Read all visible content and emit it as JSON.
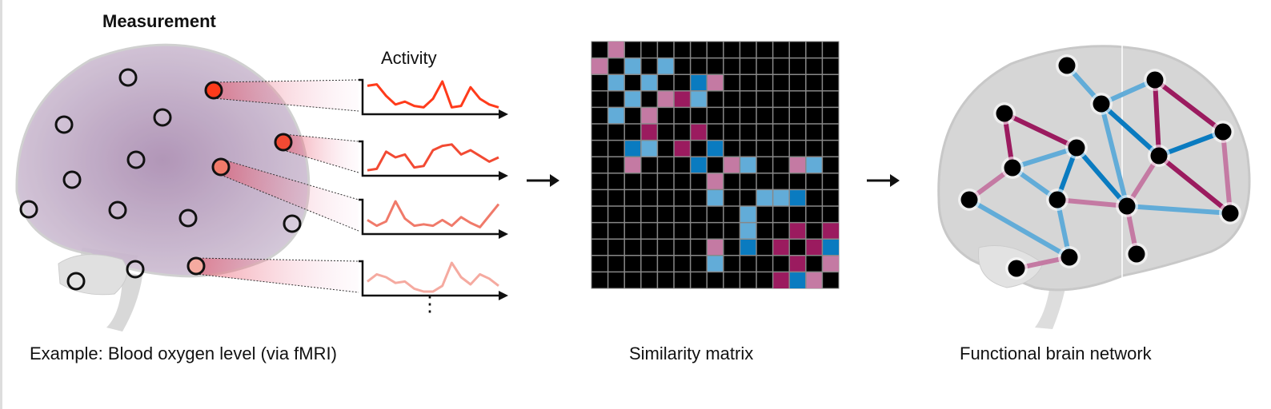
{
  "measurement": {
    "title": "Measurement",
    "activity_label": "Activity",
    "caption": "Example: Blood oxygen level (via fMRI)",
    "ellipsis": "⋮",
    "trace_colors": [
      "#ff3b1b",
      "#f24a33",
      "#f07a6a",
      "#f5aaa0"
    ],
    "traces": [
      [
        0.85,
        0.9,
        0.5,
        0.2,
        0.3,
        0.15,
        0.1,
        0.4,
        1.0,
        0.1,
        0.15,
        0.8,
        0.4,
        0.2,
        0.1
      ],
      [
        0.05,
        0.1,
        0.7,
        0.5,
        0.6,
        0.15,
        0.2,
        0.75,
        0.9,
        0.95,
        0.6,
        0.75,
        0.55,
        0.35,
        0.5
      ],
      [
        0.35,
        0.15,
        0.3,
        1.0,
        0.4,
        0.15,
        0.2,
        0.15,
        0.35,
        0.15,
        0.45,
        0.25,
        0.1,
        0.5,
        0.9
      ],
      [
        0.35,
        0.6,
        0.5,
        0.3,
        0.35,
        0.1,
        0.0,
        0.0,
        0.2,
        1.0,
        0.5,
        0.25,
        0.6,
        0.45,
        0.2
      ]
    ]
  },
  "matrix": {
    "caption": "Similarity matrix",
    "size": 15,
    "colors": {
      "P": "#c47aa3",
      "M": "#9b1b5f",
      "L": "#62acd8",
      "B": "#0a7bc0"
    },
    "cells": [
      [
        0,
        1,
        "P"
      ],
      [
        1,
        0,
        "P"
      ],
      [
        1,
        2,
        "L"
      ],
      [
        1,
        4,
        "L"
      ],
      [
        2,
        1,
        "L"
      ],
      [
        2,
        3,
        "L"
      ],
      [
        2,
        6,
        "B"
      ],
      [
        2,
        7,
        "P"
      ],
      [
        3,
        2,
        "L"
      ],
      [
        3,
        4,
        "P"
      ],
      [
        3,
        5,
        "M"
      ],
      [
        3,
        6,
        "L"
      ],
      [
        4,
        1,
        "L"
      ],
      [
        4,
        3,
        "P"
      ],
      [
        5,
        3,
        "M"
      ],
      [
        5,
        6,
        "M"
      ],
      [
        6,
        2,
        "B"
      ],
      [
        6,
        3,
        "L"
      ],
      [
        6,
        5,
        "M"
      ],
      [
        6,
        7,
        "B"
      ],
      [
        7,
        2,
        "P"
      ],
      [
        7,
        6,
        "B"
      ],
      [
        7,
        8,
        "P"
      ],
      [
        7,
        9,
        "L"
      ],
      [
        7,
        12,
        "P"
      ],
      [
        7,
        13,
        "L"
      ],
      [
        8,
        7,
        "P"
      ],
      [
        9,
        7,
        "L"
      ],
      [
        9,
        10,
        "L"
      ],
      [
        9,
        11,
        "L"
      ],
      [
        9,
        12,
        "B"
      ],
      [
        10,
        9,
        "L"
      ],
      [
        11,
        9,
        "L"
      ],
      [
        11,
        12,
        "M"
      ],
      [
        11,
        14,
        "M"
      ],
      [
        12,
        7,
        "P"
      ],
      [
        12,
        9,
        "B"
      ],
      [
        12,
        11,
        "M"
      ],
      [
        12,
        13,
        "M"
      ],
      [
        12,
        14,
        "B"
      ],
      [
        13,
        7,
        "L"
      ],
      [
        13,
        12,
        "M"
      ],
      [
        13,
        14,
        "P"
      ],
      [
        14,
        11,
        "M"
      ],
      [
        14,
        12,
        "B"
      ],
      [
        14,
        13,
        "P"
      ]
    ]
  },
  "network": {
    "caption": "Functional brain network",
    "edges": [
      [
        0,
        2,
        "L"
      ],
      [
        2,
        1,
        "L"
      ],
      [
        1,
        4,
        "M"
      ],
      [
        1,
        6,
        "M"
      ],
      [
        2,
        6,
        "B"
      ],
      [
        2,
        10,
        "L"
      ],
      [
        3,
        5,
        "M"
      ],
      [
        3,
        7,
        "M"
      ],
      [
        5,
        7,
        "L"
      ],
      [
        5,
        9,
        "B"
      ],
      [
        5,
        10,
        "B"
      ],
      [
        4,
        6,
        "B"
      ],
      [
        4,
        11,
        "P"
      ],
      [
        6,
        10,
        "P"
      ],
      [
        6,
        11,
        "M"
      ],
      [
        7,
        8,
        "P"
      ],
      [
        7,
        9,
        "L"
      ],
      [
        8,
        12,
        "L"
      ],
      [
        9,
        12,
        "L"
      ],
      [
        9,
        10,
        "P"
      ],
      [
        10,
        11,
        "L"
      ],
      [
        10,
        13,
        "P"
      ],
      [
        12,
        14,
        "P"
      ]
    ]
  }
}
